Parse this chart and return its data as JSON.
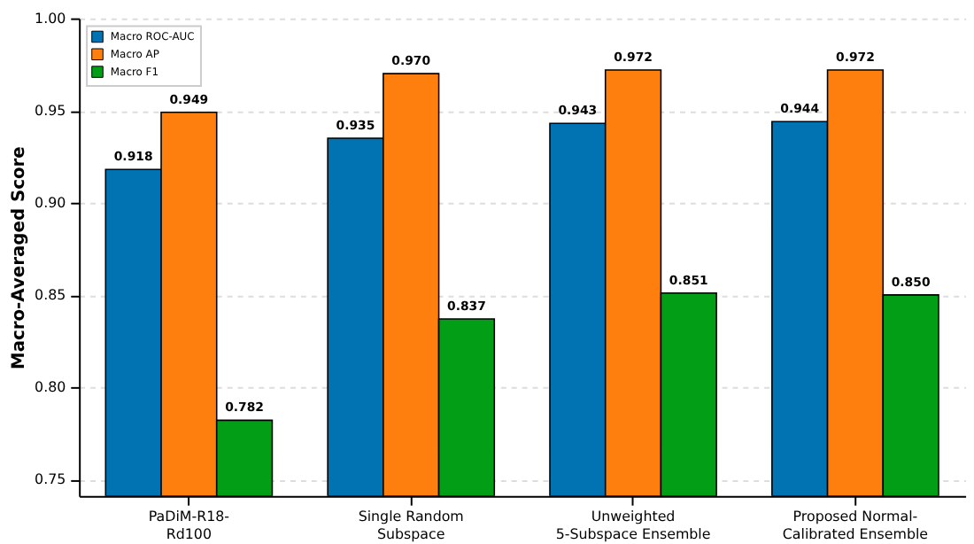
{
  "chart_data": {
    "type": "bar",
    "ylabel": "Macro-Averaged Score",
    "categories": [
      "PaDiM-R18-\nRd100",
      "Single Random\nSubspace",
      "Unweighted\n5-Subspace Ensemble",
      "Proposed Normal-\nCalibrated Ensemble"
    ],
    "series": [
      {
        "name": "Macro ROC-AUC",
        "color": "#0173b2",
        "values": [
          0.918,
          0.935,
          0.943,
          0.944
        ],
        "value_labels": [
          "0.918",
          "0.935",
          "0.943",
          "0.944"
        ]
      },
      {
        "name": "Macro AP",
        "color": "#ff7f0e",
        "values": [
          0.949,
          0.97,
          0.972,
          0.972
        ],
        "value_labels": [
          "0.949",
          "0.970",
          "0.972",
          "0.972"
        ]
      },
      {
        "name": "Macro F1",
        "color": "#029e16",
        "values": [
          0.782,
          0.837,
          0.851,
          0.85
        ],
        "value_labels": [
          "0.782",
          "0.837",
          "0.851",
          "0.850"
        ]
      }
    ],
    "ylim": [
      0.741,
      1.0
    ],
    "yticks": [
      {
        "value": 0.75,
        "label": "0.75"
      },
      {
        "value": 0.8,
        "label": "0.80"
      },
      {
        "value": 0.85,
        "label": "0.85"
      },
      {
        "value": 0.9,
        "label": "0.90"
      },
      {
        "value": 0.95,
        "label": "0.95"
      },
      {
        "value": 1.0,
        "label": "1.00"
      }
    ],
    "grid": "y",
    "legend": "top left"
  }
}
